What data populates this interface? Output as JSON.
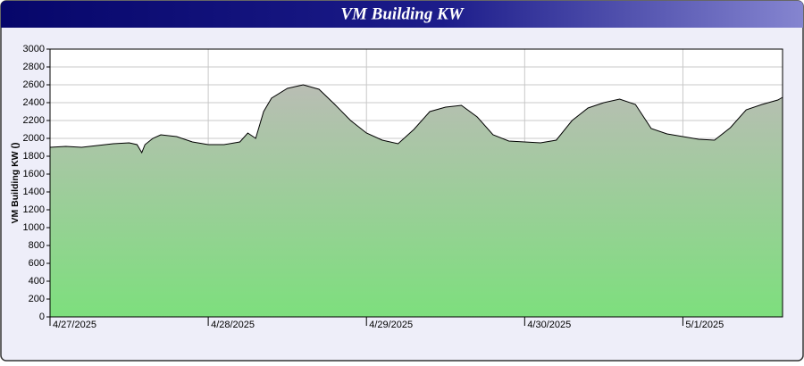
{
  "chart_data": {
    "type": "area",
    "title": "VM Building KW",
    "y_label": "VM Building KW ()",
    "x": [
      0,
      0.1,
      0.2,
      0.3,
      0.4,
      0.5,
      0.55,
      0.58,
      0.6,
      0.65,
      0.7,
      0.8,
      0.9,
      1.0,
      1.1,
      1.2,
      1.25,
      1.3,
      1.35,
      1.4,
      1.5,
      1.6,
      1.7,
      1.8,
      1.9,
      2.0,
      2.1,
      2.2,
      2.3,
      2.4,
      2.5,
      2.6,
      2.7,
      2.8,
      2.9,
      3.0,
      3.1,
      3.2,
      3.3,
      3.4,
      3.5,
      3.6,
      3.7,
      3.8,
      3.9,
      4.0,
      4.1,
      4.2,
      4.3,
      4.4,
      4.5,
      4.6,
      4.63
    ],
    "values": [
      1900,
      1910,
      1900,
      1920,
      1940,
      1950,
      1930,
      1840,
      1930,
      2000,
      2040,
      2020,
      1960,
      1930,
      1930,
      1960,
      2060,
      2000,
      2300,
      2450,
      2560,
      2600,
      2550,
      2380,
      2200,
      2060,
      1980,
      1940,
      2100,
      2300,
      2350,
      2370,
      2240,
      2040,
      1970,
      1960,
      1950,
      1980,
      2200,
      2340,
      2400,
      2440,
      2380,
      2110,
      2050,
      2020,
      1990,
      1980,
      2120,
      2320,
      2380,
      2430,
      2460
    ],
    "xlim": [
      0,
      4.63
    ],
    "xticks": [
      {
        "value": 0,
        "label": "4/27/2025"
      },
      {
        "value": 1,
        "label": "4/28/2025"
      },
      {
        "value": 2,
        "label": "4/29/2025"
      },
      {
        "value": 3,
        "label": "4/30/2025"
      },
      {
        "value": 4,
        "label": "5/1/2025"
      }
    ],
    "ylim": [
      0,
      3000
    ],
    "yticks": [
      0,
      200,
      400,
      600,
      800,
      1000,
      1200,
      1400,
      1600,
      1800,
      2000,
      2200,
      2400,
      2600,
      2800,
      3000
    ],
    "grid": true,
    "line_color": "#000000",
    "fill_top": "#b9bdb4",
    "fill_bottom": "#7ddf7d"
  }
}
